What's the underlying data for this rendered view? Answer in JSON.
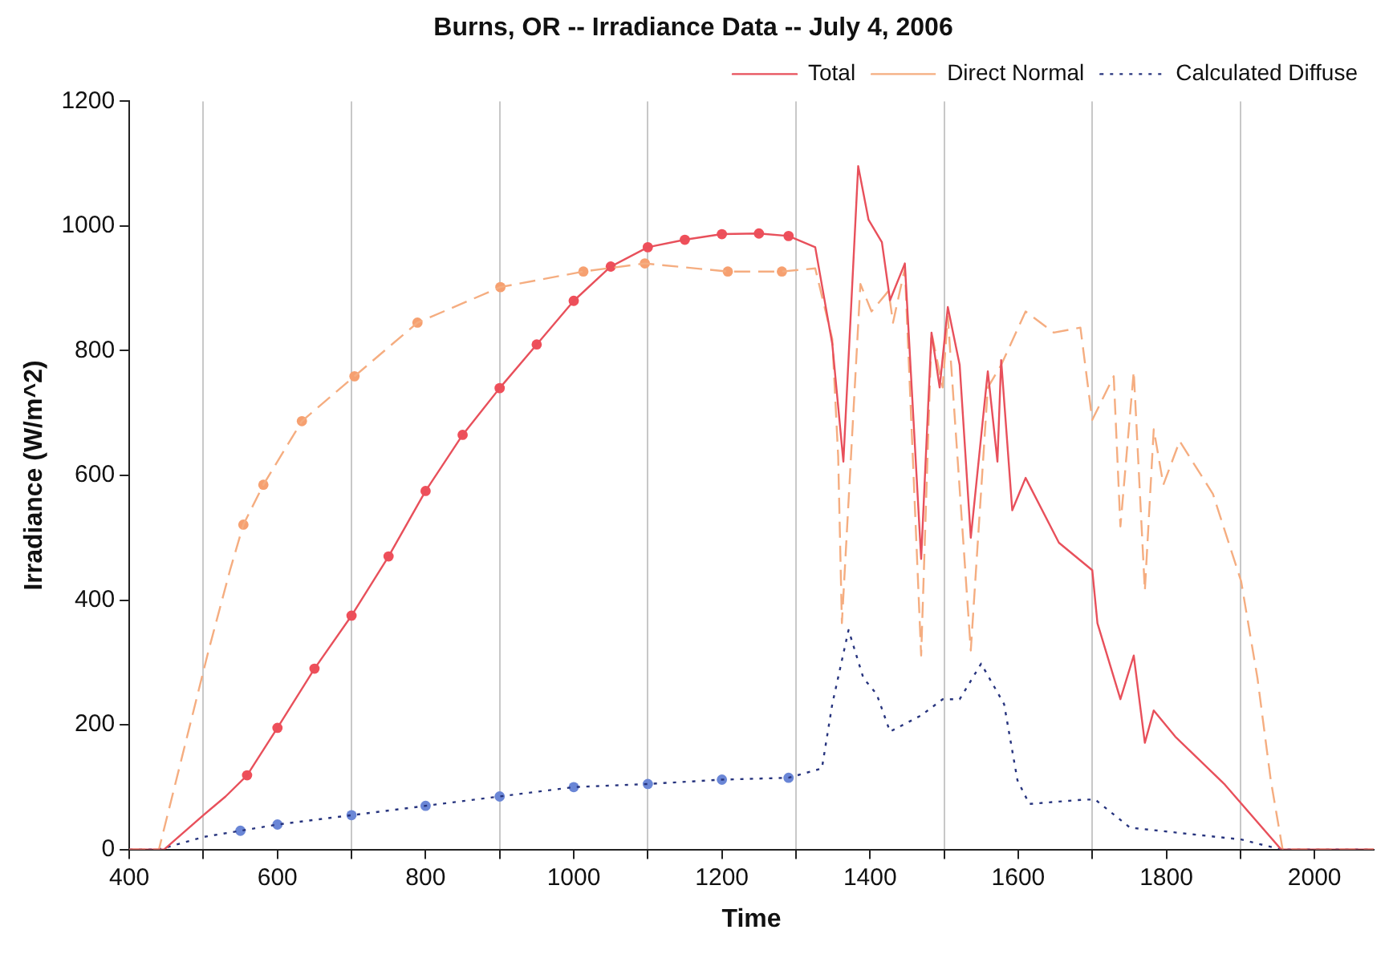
{
  "chart_data": {
    "type": "line",
    "title": "Burns, OR -- Irradiance Data -- July 4, 2006",
    "xlabel": "Time",
    "ylabel": "Irradiance (W/m^2)",
    "series": [
      {
        "name": "Total",
        "color": "#e8505b",
        "line_style": "solid",
        "marker": "none",
        "x": [
          400,
          447,
          500,
          530,
          559,
          600,
          650,
          700,
          750,
          800,
          850,
          900,
          950,
          1000,
          1050,
          1100,
          1150,
          1200,
          1250,
          1290,
          1326,
          1349,
          1364,
          1384,
          1398,
          1416,
          1427,
          1447,
          1469,
          1483,
          1494,
          1505,
          1521,
          1536,
          1559,
          1572,
          1577,
          1592,
          1610,
          1655,
          1700,
          1707,
          1738,
          1756,
          1771,
          1783,
          1812,
          1879,
          1955,
          2080
        ],
        "values": [
          0,
          0,
          55,
          85,
          119,
          195,
          290,
          375,
          470,
          575,
          665,
          740,
          810,
          880,
          935,
          966,
          978,
          987,
          988,
          984,
          966,
          811,
          622,
          1096,
          1010,
          974,
          881,
          940,
          466,
          829,
          741,
          870,
          777,
          500,
          767,
          622,
          785,
          544,
          596,
          492,
          448,
          363,
          241,
          311,
          171,
          223,
          181,
          104,
          0,
          0
        ]
      },
      {
        "name": "Direct Normal",
        "color": "#f5ad80",
        "line_style": "dashed",
        "marker": "none",
        "x": [
          400,
          440,
          507,
          536,
          554,
          581,
          633,
          704,
          789,
          901,
          1013,
          1096,
          1208,
          1281,
          1326,
          1349,
          1357,
          1362,
          1387,
          1402,
          1425,
          1431,
          1447,
          1469,
          1483,
          1498,
          1505,
          1536,
          1559,
          1577,
          1610,
          1648,
          1684,
          1700,
          1729,
          1738,
          1756,
          1771,
          1783,
          1796,
          1818,
          1863,
          1901,
          1923,
          1941,
          1957,
          2080
        ],
        "values": [
          0,
          0,
          319,
          448,
          521,
          585,
          687,
          759,
          845,
          902,
          927,
          940,
          927,
          927,
          932,
          819,
          630,
          363,
          907,
          863,
          896,
          845,
          932,
          311,
          829,
          741,
          855,
          319,
          741,
          777,
          863,
          829,
          837,
          689,
          759,
          518,
          767,
          415,
          674,
          585,
          655,
          570,
          430,
          275,
          111,
          0,
          0
        ]
      },
      {
        "name": "Calculated Diffuse",
        "color": "#27347e",
        "line_style": "dotted",
        "marker": "none",
        "x": [
          400,
          440,
          500,
          550,
          600,
          700,
          800,
          900,
          1000,
          1100,
          1200,
          1290,
          1335,
          1349,
          1371,
          1391,
          1409,
          1427,
          1469,
          1498,
          1521,
          1550,
          1581,
          1599,
          1615,
          1689,
          1704,
          1751,
          1901,
          1955,
          2080
        ],
        "values": [
          0,
          0,
          20,
          30,
          40,
          55,
          70,
          85,
          100,
          105,
          112,
          115,
          130,
          233,
          352,
          275,
          249,
          189,
          215,
          241,
          241,
          298,
          233,
          111,
          73,
          80,
          80,
          35,
          16,
          0,
          0
        ]
      },
      {
        "type": "scatter",
        "marker": "circle",
        "color": "#ef4f5a",
        "x": [
          559,
          600,
          650,
          700,
          750,
          800,
          850,
          900,
          950,
          1000,
          1050,
          1100,
          1150,
          1200,
          1250,
          1290
        ],
        "values": [
          119,
          195,
          290,
          375,
          470,
          575,
          665,
          740,
          810,
          880,
          935,
          966,
          978,
          987,
          988,
          984
        ]
      },
      {
        "type": "scatter",
        "marker": "circle",
        "color": "#f6a070",
        "x": [
          554,
          581,
          633,
          704,
          789,
          901,
          1013,
          1096,
          1208,
          1281
        ],
        "values": [
          521,
          585,
          687,
          759,
          845,
          902,
          927,
          940,
          927,
          927
        ]
      },
      {
        "type": "scatter",
        "marker": "circle",
        "color": "#6a86d6",
        "x": [
          550,
          600,
          700,
          800,
          900,
          1000,
          1100,
          1200,
          1290
        ],
        "values": [
          30,
          40,
          55,
          70,
          85,
          100,
          105,
          112,
          115
        ]
      }
    ],
    "xlim": [
      400,
      2080
    ],
    "ylim": [
      0,
      1200
    ],
    "xticks": [
      400,
      {
        "value": 500,
        "label": null
      },
      600,
      {
        "value": 700,
        "label": null
      },
      800,
      {
        "value": 900,
        "label": null
      },
      1000,
      {
        "value": 1100,
        "label": null
      },
      1200,
      {
        "value": 1300,
        "label": null
      },
      1400,
      {
        "value": 1500,
        "label": null
      },
      1600,
      {
        "value": 1700,
        "label": null
      },
      1800,
      {
        "value": 1900,
        "label": null
      },
      2000
    ],
    "yticks": [
      0,
      200,
      400,
      600,
      800,
      1000,
      1200
    ],
    "grid": "x",
    "legend": "top right"
  }
}
